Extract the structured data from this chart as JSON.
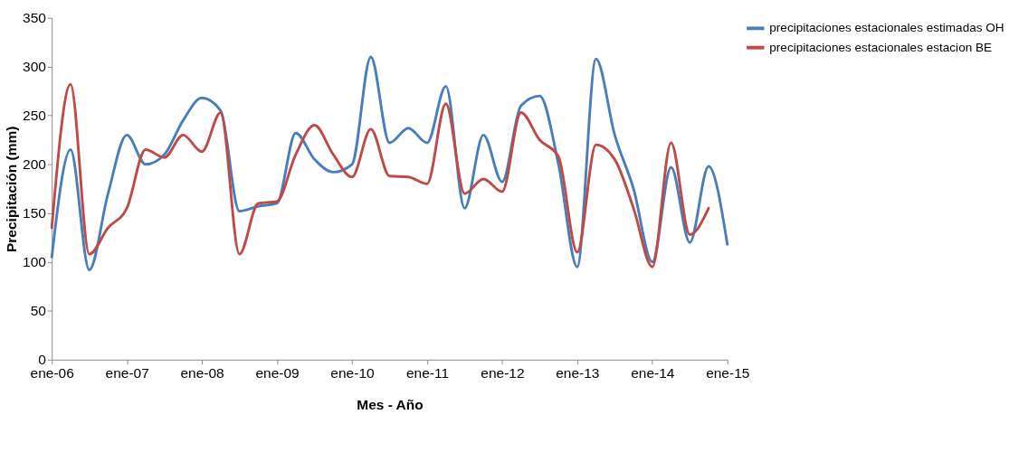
{
  "chart_data": {
    "type": "line",
    "xlabel": "Mes - Año",
    "ylabel": "Precipitación (mm)",
    "categories": [
      "ene-06",
      null,
      null,
      null,
      "ene-07",
      null,
      null,
      null,
      "ene-08",
      null,
      null,
      null,
      "ene-09",
      null,
      null,
      null,
      "ene-10",
      null,
      null,
      null,
      "ene-11",
      null,
      null,
      null,
      "ene-12",
      null,
      null,
      null,
      "ene-13",
      null,
      null,
      null,
      "ene-14",
      null,
      null,
      null,
      "ene-15"
    ],
    "series": [
      {
        "name": "precipitaciones estacionales estimadas OH",
        "color": "#4a7ebb",
        "values": [
          105,
          215,
          92,
          170,
          230,
          200,
          210,
          245,
          268,
          255,
          152,
          157,
          160,
          232,
          205,
          192,
          200,
          310,
          222,
          237,
          222,
          280,
          155,
          230,
          182,
          260,
          270,
          200,
          95,
          308,
          230,
          175,
          100,
          197,
          120,
          198,
          118
        ]
      },
      {
        "name": "precipitaciones estacionales estacion BE",
        "color": "#be4b48",
        "values": [
          135,
          282,
          108,
          135,
          155,
          215,
          207,
          230,
          213,
          253,
          108,
          160,
          162,
          210,
          240,
          210,
          187,
          236,
          188,
          187,
          180,
          262,
          170,
          185,
          172,
          253,
          225,
          208,
          110,
          220,
          205,
          155,
          95,
          222,
          128,
          155,
          null
        ]
      }
    ],
    "ylim": [
      0,
      350
    ],
    "yticks": [
      0,
      50,
      100,
      150,
      200,
      250,
      300,
      350
    ],
    "grid": false,
    "legend": "right",
    "marker": "none",
    "line_style": "solid"
  }
}
